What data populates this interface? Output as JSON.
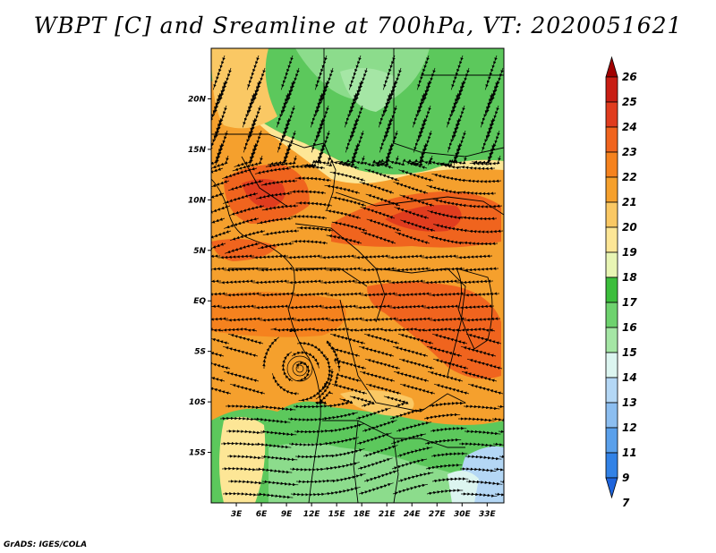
{
  "title": "WBPT [C] and Sreamline at 700hPa, VT: 2020051621",
  "credit": "GrADS: IGES/COLA",
  "map": {
    "lat_ticks": [
      "20N",
      "15N",
      "10N",
      "5N",
      "EQ",
      "5S",
      "10S",
      "15S"
    ],
    "lat_values": [
      20,
      15,
      10,
      5,
      0,
      -5,
      -10,
      -15
    ],
    "lon_ticks": [
      "3E",
      "6E",
      "9E",
      "12E",
      "15E",
      "18E",
      "21E",
      "24E",
      "27E",
      "30E",
      "33E"
    ],
    "lon_values": [
      3,
      6,
      9,
      12,
      15,
      18,
      21,
      24,
      27,
      30,
      33
    ],
    "lon_range": [
      0,
      35
    ],
    "lat_range": [
      -20,
      25
    ]
  },
  "colorbar": {
    "levels": [
      "26",
      "25",
      "24",
      "23",
      "22",
      "21",
      "20",
      "19",
      "18",
      "17",
      "16",
      "15",
      "14",
      "13",
      "12",
      "11",
      "9",
      "7"
    ],
    "colors": [
      "#a00000",
      "#c81e14",
      "#e03c1e",
      "#f0641e",
      "#f5821e",
      "#f5a02d",
      "#fac864",
      "#fde696",
      "#e8f5b4",
      "#3cbe3c",
      "#6ed26e",
      "#a5e6a5",
      "#dcf5f0",
      "#b4d7f5",
      "#8cbef0",
      "#5aa0eb",
      "#3282e6",
      "#1e64dc"
    ]
  }
}
